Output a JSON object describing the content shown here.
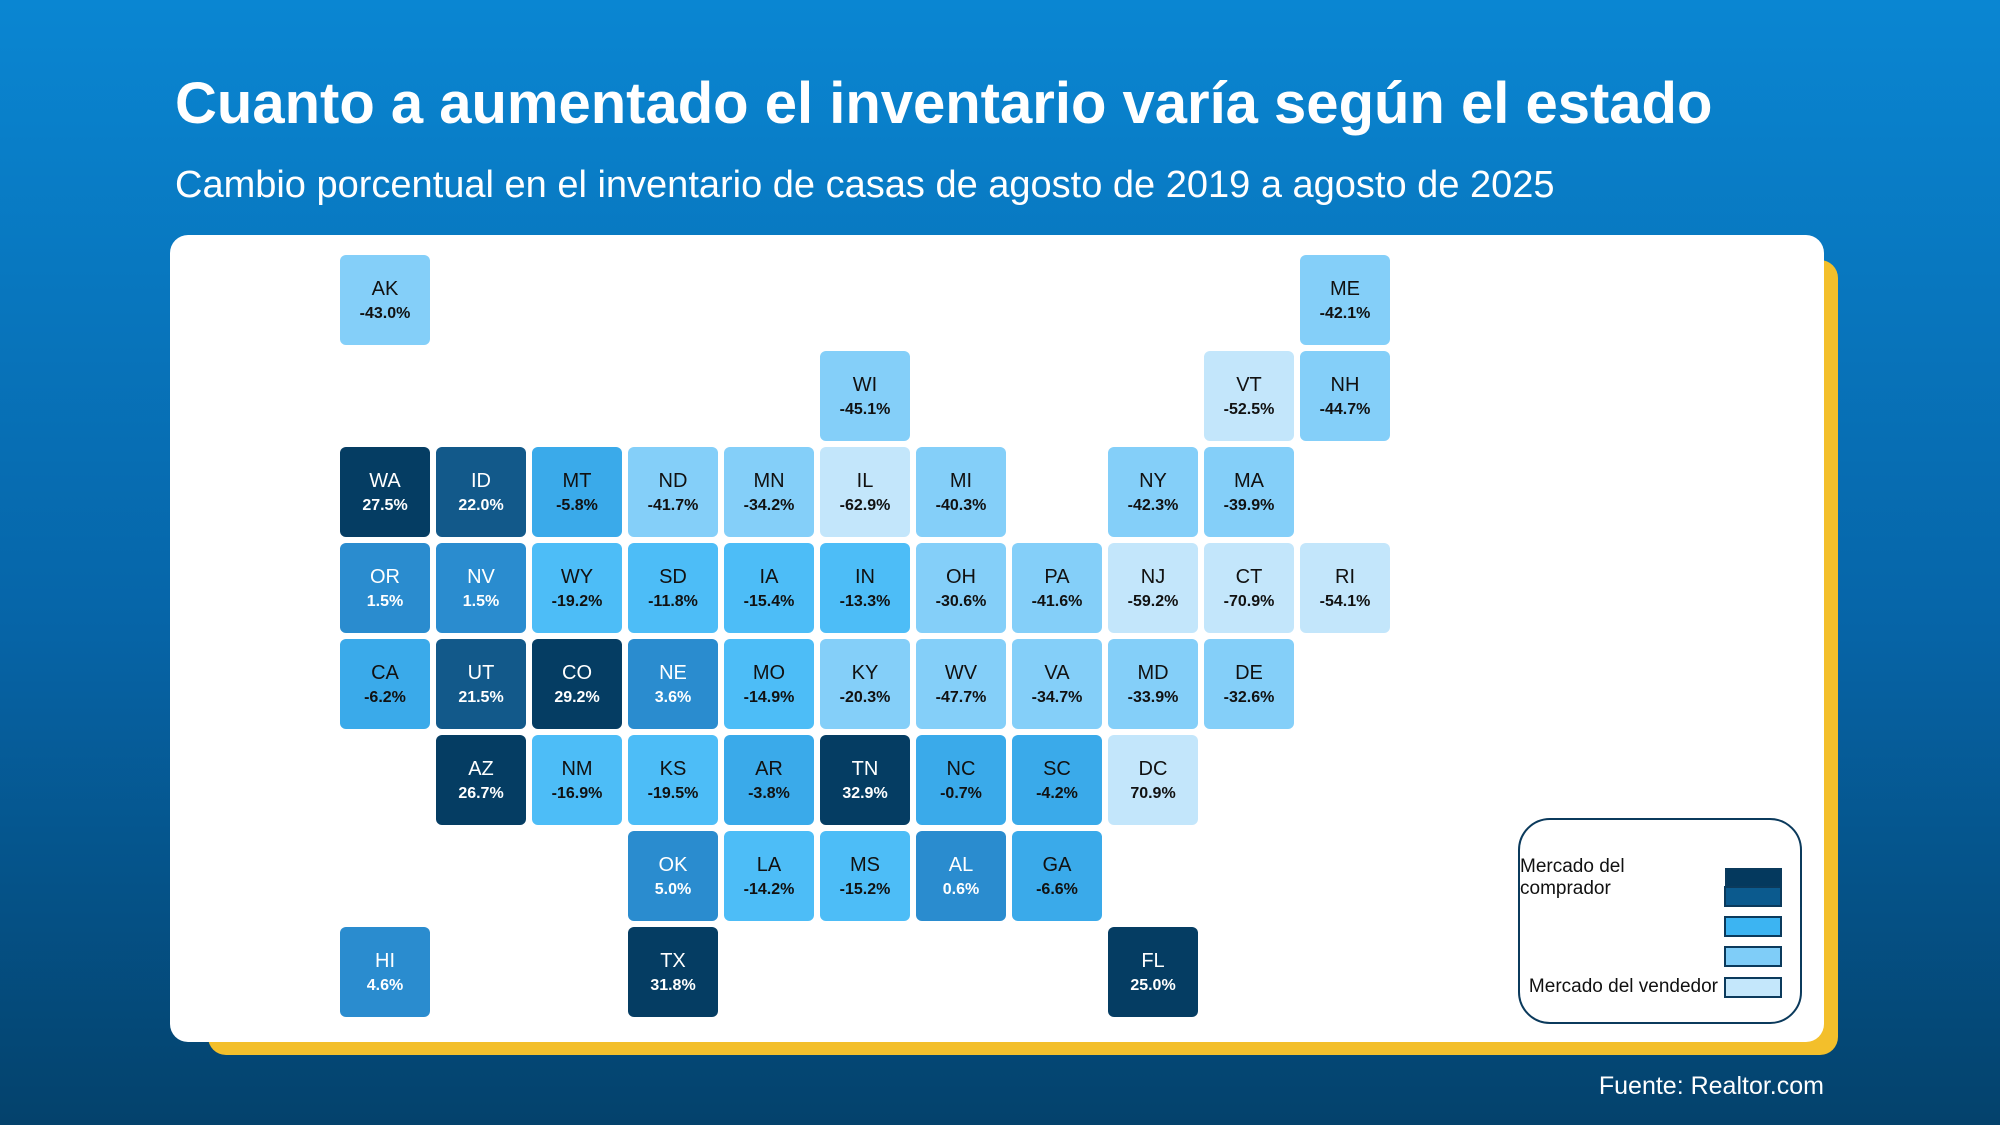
{
  "title": "Cuanto a aumentado el inventario varía según el estado",
  "subtitle": "Cambio porcentual en el inventario de casas de agosto de 2019 a agosto de 2025",
  "source": "Fuente: Realtor.com",
  "legend": {
    "items": [
      {
        "label": "Mercado del comprador",
        "color": "#04395e"
      },
      {
        "label": "",
        "color": "#0b5a8e"
      },
      {
        "label": "",
        "color": "#3cb4f2"
      },
      {
        "label": "",
        "color": "#7fcdf8"
      },
      {
        "label": "Mercado del vendedor",
        "color": "#c4e7fb"
      }
    ]
  },
  "states": [
    {
      "abbr": "AK",
      "value": "-43.0%"
    },
    {
      "abbr": "ME",
      "value": "-42.1%"
    },
    {
      "abbr": "WI",
      "value": "-45.1%"
    },
    {
      "abbr": "VT",
      "value": "-52.5%"
    },
    {
      "abbr": "NH",
      "value": "-44.7%"
    },
    {
      "abbr": "WA",
      "value": "27.5%"
    },
    {
      "abbr": "ID",
      "value": "22.0%"
    },
    {
      "abbr": "MT",
      "value": "-5.8%"
    },
    {
      "abbr": "ND",
      "value": "-41.7%"
    },
    {
      "abbr": "MN",
      "value": "-34.2%"
    },
    {
      "abbr": "IL",
      "value": "-62.9%"
    },
    {
      "abbr": "MI",
      "value": "-40.3%"
    },
    {
      "abbr": "NY",
      "value": "-42.3%"
    },
    {
      "abbr": "MA",
      "value": "-39.9%"
    },
    {
      "abbr": "OR",
      "value": "1.5%"
    },
    {
      "abbr": "NV",
      "value": "1.5%"
    },
    {
      "abbr": "WY",
      "value": "-19.2%"
    },
    {
      "abbr": "SD",
      "value": "-11.8%"
    },
    {
      "abbr": "IA",
      "value": "-15.4%"
    },
    {
      "abbr": "IN",
      "value": "-13.3%"
    },
    {
      "abbr": "OH",
      "value": "-30.6%"
    },
    {
      "abbr": "PA",
      "value": "-41.6%"
    },
    {
      "abbr": "NJ",
      "value": "-59.2%"
    },
    {
      "abbr": "CT",
      "value": "-70.9%"
    },
    {
      "abbr": "RI",
      "value": "-54.1%"
    },
    {
      "abbr": "CA",
      "value": "-6.2%"
    },
    {
      "abbr": "UT",
      "value": "21.5%"
    },
    {
      "abbr": "CO",
      "value": "29.2%"
    },
    {
      "abbr": "NE",
      "value": "3.6%"
    },
    {
      "abbr": "MO",
      "value": "-14.9%"
    },
    {
      "abbr": "KY",
      "value": "-20.3%"
    },
    {
      "abbr": "WV",
      "value": "-47.7%"
    },
    {
      "abbr": "VA",
      "value": "-34.7%"
    },
    {
      "abbr": "MD",
      "value": "-33.9%"
    },
    {
      "abbr": "DE",
      "value": "-32.6%"
    },
    {
      "abbr": "AZ",
      "value": "26.7%"
    },
    {
      "abbr": "NM",
      "value": "-16.9%"
    },
    {
      "abbr": "KS",
      "value": "-19.5%"
    },
    {
      "abbr": "AR",
      "value": "-3.8%"
    },
    {
      "abbr": "TN",
      "value": "32.9%"
    },
    {
      "abbr": "NC",
      "value": "-0.7%"
    },
    {
      "abbr": "SC",
      "value": "-4.2%"
    },
    {
      "abbr": "DC",
      "value": "70.9%"
    },
    {
      "abbr": "OK",
      "value": "5.0%"
    },
    {
      "abbr": "LA",
      "value": "-14.2%"
    },
    {
      "abbr": "MS",
      "value": "-15.2%"
    },
    {
      "abbr": "AL",
      "value": "0.6%"
    },
    {
      "abbr": "GA",
      "value": "-6.6%"
    },
    {
      "abbr": "HI",
      "value": "4.6%"
    },
    {
      "abbr": "TX",
      "value": "31.8%"
    },
    {
      "abbr": "FL",
      "value": "25.0%"
    }
  ]
}
